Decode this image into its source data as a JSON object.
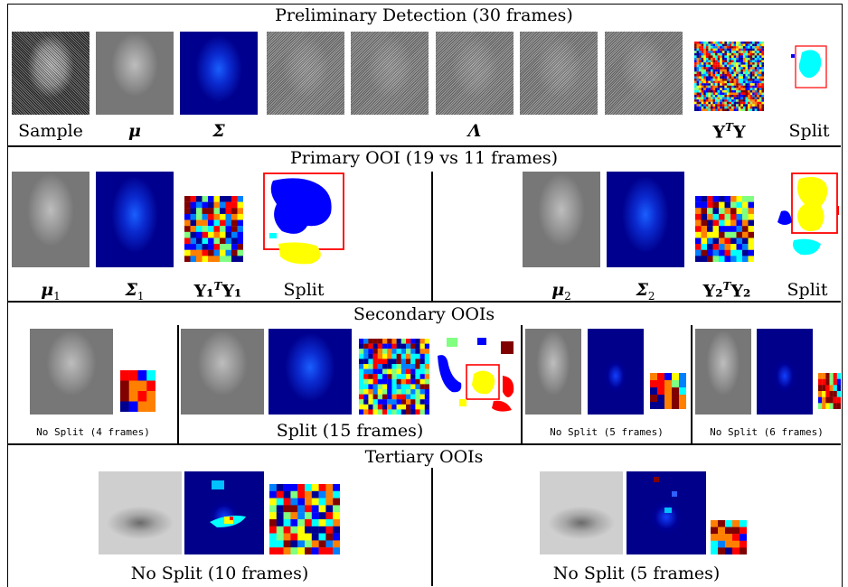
{
  "sections": {
    "preliminary": {
      "title": "Preliminary Detection (30 frames)",
      "labels": {
        "sample": "Sample",
        "mu": "μ",
        "sigma": "Σ",
        "lambda": "Λ",
        "yty_base": "Y",
        "yty_sup": "T",
        "yty_tail": "Y",
        "split": "Split"
      }
    },
    "primary": {
      "title": "Primary OOI (19 vs 11 frames)",
      "left": {
        "mu": "μ",
        "mu_sub": "1",
        "sigma": "Σ",
        "sigma_sub": "1",
        "yty": "Y₁",
        "yty_sup": "T",
        "yty_tail": "Y₁",
        "split": "Split"
      },
      "right": {
        "mu": "μ",
        "mu_sub": "2",
        "sigma": "Σ",
        "sigma_sub": "2",
        "yty": "Y₂",
        "yty_sup": "T",
        "yty_tail": "Y₂",
        "split": "Split"
      }
    },
    "secondary": {
      "title": "Secondary OOIs",
      "captions": [
        "No Split (4 frames)",
        "Split (15 frames)",
        "No Split (5 frames)",
        "No Split (6 frames)"
      ]
    },
    "tertiary": {
      "title": "Tertiary OOIs",
      "captions": [
        "No Split (10 frames)",
        "No Split (5 frames)"
      ]
    }
  },
  "colors": {
    "jet_dark": "#00008f",
    "jet_blue": "#0000ff",
    "jet_cyan": "#00ffff",
    "jet_yellow": "#ffff00",
    "jet_red": "#ff0000",
    "split_box": "#ff0000"
  }
}
